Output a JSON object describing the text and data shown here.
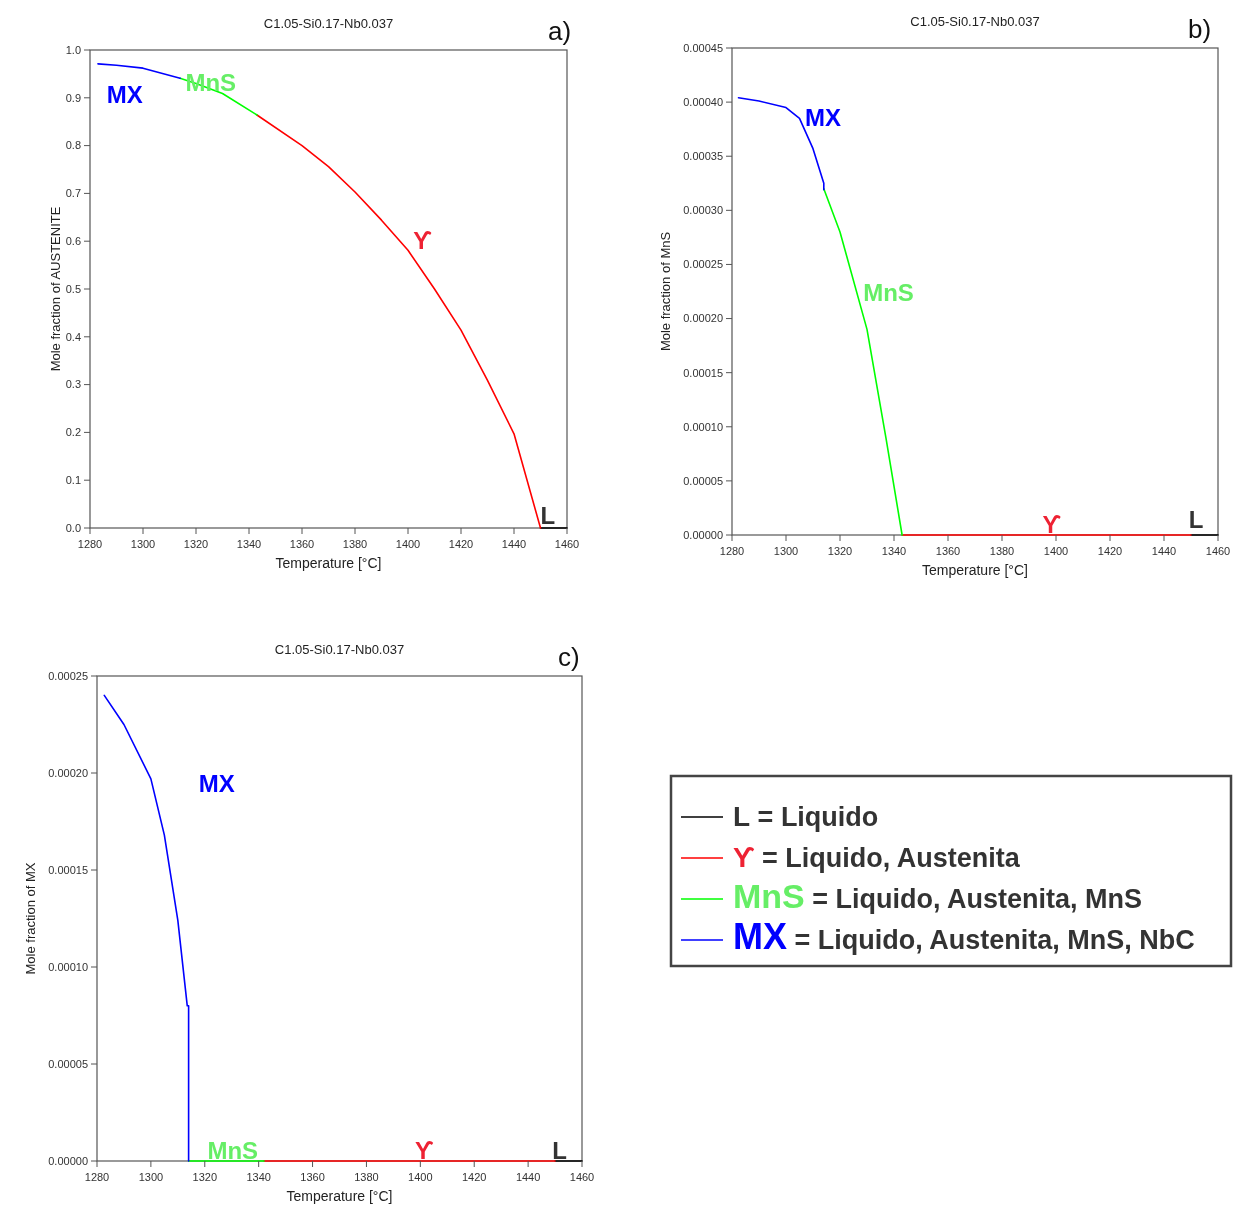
{
  "chart_data": [
    {
      "type": "line",
      "title": "C1.05-Si0.17-Nb0.037",
      "xlabel": "Temperature [°C]",
      "ylabel": "Mole fraction of AUSTENITE",
      "xlim": [
        1280,
        1460
      ],
      "xticks": [
        1280,
        1300,
        1320,
        1340,
        1360,
        1380,
        1400,
        1420,
        1440,
        1460
      ],
      "ylim": [
        0,
        1
      ],
      "yticks": [
        {
          "value": 0,
          "label": "0.0"
        },
        0.1,
        0.2,
        0.3,
        0.4,
        0.5,
        0.6,
        0.7,
        0.8,
        0.9,
        {
          "value": 1,
          "label": "1.0"
        }
      ],
      "grid": false,
      "legend": false,
      "marker": "none",
      "line_style": "solid",
      "annotations": [
        "a)",
        {
          "text": "L",
          "x": 1450,
          "y": 0.005
        },
        {
          "text": "ϒ",
          "x": 1402,
          "y": 0.58
        },
        "MnS",
        "MX"
      ],
      "series": [
        {
          "color": "#000000",
          "x": [
            1450,
            1460
          ],
          "values": [
            0,
            0
          ]
        },
        {
          "color": "#ff0000",
          "x": [
            1343,
            1360,
            1370,
            1380,
            1390,
            1400,
            1410,
            1420,
            1430,
            1440,
            1450
          ],
          "values": [
            0.864,
            0.8,
            0.756,
            0.703,
            0.644,
            0.581,
            0.5,
            0.414,
            0.309,
            0.197,
            0
          ]
        },
        {
          "color": "#00ff00",
          "x": [
            1314,
            1320,
            1330,
            1343
          ],
          "values": [
            0.941,
            0.93,
            0.909,
            0.864
          ]
        },
        {
          "color": "#0000ff",
          "x": [
            1283,
            1290,
            1300,
            1314
          ],
          "values": [
            0.971,
            0.968,
            0.962,
            0.941
          ]
        }
      ]
    },
    {
      "type": "line",
      "title": "C1.05-Si0.17-Nb0.037",
      "xlabel": "Temperature [°C]",
      "ylabel": "Mole fraction of MnS",
      "xlim": [
        1280,
        1460
      ],
      "xticks": [
        1280,
        1300,
        1320,
        1340,
        1360,
        1380,
        1400,
        1420,
        1440,
        1460
      ],
      "ylim": [
        0,
        0.00045
      ],
      "yticks": [
        {
          "value": 0,
          "label": "0.00000"
        },
        {
          "value": 5e-05,
          "label": "0.00005"
        },
        {
          "value": 0.0001,
          "label": "0.00010"
        },
        {
          "value": 0.00015,
          "label": "0.00015"
        },
        {
          "value": 0.0002,
          "label": "0.00020"
        },
        {
          "value": 0.00025,
          "label": "0.00025"
        },
        {
          "value": 0.0003,
          "label": "0.00030"
        },
        {
          "value": 0.00035,
          "label": "0.00035"
        },
        {
          "value": 0.0004,
          "label": "0.00040"
        },
        {
          "value": 0.00045,
          "label": "0.00045"
        }
      ],
      "grid": false,
      "legend": false,
      "marker": "none",
      "line_style": "solid",
      "annotations": [
        "b)",
        "L",
        {
          "text": "ϒ",
          "x": 1395,
          "y": 0
        },
        "MnS",
        "MX"
      ],
      "series": [
        {
          "color": "#000000",
          "x": [
            1450,
            1460
          ],
          "values": [
            0,
            0
          ]
        },
        {
          "color": "#ff0000",
          "x": [
            1343,
            1450
          ],
          "values": [
            0,
            0
          ]
        },
        {
          "color": "#00ff00",
          "x": [
            1314,
            1320,
            1330,
            1337,
            1343
          ],
          "values": [
            0.00032,
            0.00028,
            0.00019,
            9e-05,
            0
          ]
        },
        {
          "color": "#0000ff",
          "x": [
            1282.4,
            1290,
            1300,
            1305,
            1310,
            1314,
            1314
          ],
          "values": [
            0.000404,
            0.000401,
            0.000395,
            0.000385,
            0.000357,
            0.000325,
            0.000319
          ]
        }
      ]
    },
    {
      "type": "line",
      "title": "C1.05-Si0.17-Nb0.037",
      "xlabel": "Temperature [°C]",
      "ylabel": "Mole fraction of MX",
      "xlim": [
        1280,
        1460
      ],
      "xticks": [
        1280,
        1300,
        1320,
        1340,
        1360,
        1380,
        1400,
        1420,
        1440,
        1460
      ],
      "ylim": [
        0,
        0.00025
      ],
      "yticks": [
        {
          "value": 0,
          "label": "0.00000"
        },
        {
          "value": 5e-05,
          "label": "0.00005"
        },
        {
          "value": 0.0001,
          "label": "0.00010"
        },
        {
          "value": 0.00015,
          "label": "0.00015"
        },
        {
          "value": 0.0002,
          "label": "0.00020"
        },
        {
          "value": 0.00025,
          "label": "0.00025"
        }
      ],
      "grid": false,
      "legend": "right",
      "marker": "none",
      "line_style": "solid",
      "annotations": [
        "c)",
        {
          "text": "L",
          "x": 1449,
          "y": 0
        },
        {
          "text": "ϒ",
          "x": 1398,
          "y": 0
        },
        {
          "text": "MnS",
          "x": 1321,
          "y": 0
        },
        "MX"
      ],
      "series": [
        {
          "name": "L = Liquido",
          "color": "#000000",
          "x": [
            1450,
            1460
          ],
          "values": [
            0,
            0
          ]
        },
        {
          "name": "ϒ = Liquido, Austenita",
          "color": "#ff0000",
          "x": [
            1342,
            1450
          ],
          "values": [
            0,
            0
          ]
        },
        {
          "name": "MnS = Liquido, Austenita, MnS",
          "color": "#00ff00",
          "x": [
            1314,
            1342
          ],
          "values": [
            0,
            0
          ]
        },
        {
          "name": "MX = Liquido, Austenita, MnS, NbC",
          "color": "#0000ff",
          "x": [
            1282.7,
            1290,
            1300,
            1305,
            1310,
            1313.5,
            1314,
            1314
          ],
          "values": [
            0.00024,
            0.000225,
            0.000197,
            0.000168,
            0.000124,
            8e-05,
            8e-05,
            0
          ]
        }
      ]
    }
  ]
}
